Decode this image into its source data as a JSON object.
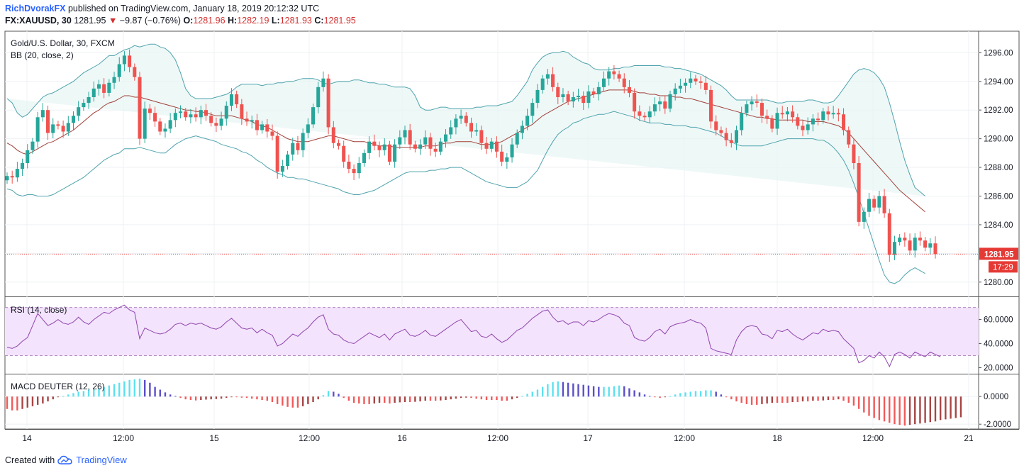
{
  "header": {
    "author": "RichDvorakFX",
    "published_text": "published on TradingView.com, January 18, 2019 20:12:32 UTC",
    "symbol_line": "FX:XAUUSD, 30",
    "last_price": "1281.95",
    "change_arrow": "▼",
    "change": "−9.87 (−0.76%)",
    "open_label": "O:",
    "open": "1281.96",
    "high_label": "H:",
    "high": "1282.19",
    "low_label": "L:",
    "low": "1281.93",
    "close_label": "C:",
    "close": "1281.95"
  },
  "footer": {
    "created_with": "Created with",
    "brand": "TradingView"
  },
  "colors": {
    "up": "#26a69a",
    "down": "#ef5350",
    "bb_band": "#4fa3ad",
    "bb_basis": "#a0403a",
    "rsi": "#8e44ad",
    "rsi_fill": "#f3e3fc",
    "macd_pos_strong": "#5ce1f0",
    "macd_pos_weak": "#5b4fc8",
    "macd_neg_strong": "#f05a5a",
    "macd_neg_weak": "#a84444",
    "price_label_bg": "#e53935"
  },
  "chart_data": [
    {
      "type": "candlestick",
      "title": "Gold/U.S. Dollar, 30, FXCM",
      "indicator": "BB (20, close, 2)",
      "x_labels": [
        "14",
        "12:00",
        "15",
        "12:00",
        "16",
        "12:00",
        "17",
        "12:00",
        "18",
        "12:00",
        "21"
      ],
      "y_ticks": [
        "1296.00",
        "1294.00",
        "1292.00",
        "1290.00",
        "1288.00",
        "1286.00",
        "1284.00",
        "1282.00",
        "1280.00"
      ],
      "ylim": [
        1279.0,
        1297.5
      ],
      "last_price_label": "1281.95",
      "countdown_label": "17:29",
      "closes": [
        1287.4,
        1287.3,
        1287.9,
        1288.3,
        1289.2,
        1289.8,
        1291.5,
        1292.0,
        1290.4,
        1291.0,
        1290.9,
        1290.5,
        1291.1,
        1291.6,
        1292.2,
        1292.5,
        1292.9,
        1293.5,
        1293.8,
        1293.2,
        1293.9,
        1294.3,
        1295.2,
        1295.8,
        1295.0,
        1294.3,
        1290.0,
        1292.1,
        1291.8,
        1291.2,
        1290.5,
        1290.7,
        1291.3,
        1291.8,
        1291.9,
        1291.5,
        1291.7,
        1291.5,
        1292.0,
        1291.6,
        1291.1,
        1290.9,
        1291.4,
        1292.3,
        1293.1,
        1292.4,
        1291.4,
        1291.2,
        1291.3,
        1290.6,
        1291.0,
        1290.5,
        1290.2,
        1287.7,
        1288.1,
        1288.9,
        1289.7,
        1289.2,
        1290.4,
        1291.0,
        1292.2,
        1293.6,
        1294.2,
        1290.8,
        1289.7,
        1289.5,
        1288.4,
        1287.9,
        1287.6,
        1288.3,
        1289.0,
        1289.8,
        1289.5,
        1289.2,
        1289.6,
        1288.4,
        1289.6,
        1290.1,
        1290.6,
        1289.6,
        1289.3,
        1289.6,
        1290.1,
        1289.3,
        1289.1,
        1289.8,
        1290.3,
        1290.8,
        1291.4,
        1291.6,
        1291.1,
        1290.5,
        1290.6,
        1289.7,
        1289.3,
        1289.8,
        1289.1,
        1288.4,
        1288.7,
        1289.6,
        1290.4,
        1290.9,
        1291.6,
        1292.5,
        1293.4,
        1294.2,
        1294.5,
        1293.6,
        1292.9,
        1293.1,
        1292.6,
        1292.9,
        1293.0,
        1292.5,
        1293.3,
        1293.1,
        1293.6,
        1294.2,
        1294.7,
        1294.5,
        1294.2,
        1293.6,
        1293.2,
        1291.9,
        1291.6,
        1291.5,
        1291.9,
        1292.4,
        1292.6,
        1292.1,
        1293.1,
        1293.5,
        1293.7,
        1293.9,
        1294.2,
        1294.0,
        1293.9,
        1293.4,
        1291.2,
        1290.6,
        1290.4,
        1289.9,
        1289.7,
        1290.6,
        1291.8,
        1292.4,
        1292.6,
        1292.5,
        1291.6,
        1291.4,
        1290.7,
        1291.8,
        1291.7,
        1291.9,
        1291.5,
        1290.9,
        1290.6,
        1291.0,
        1291.4,
        1291.3,
        1291.9,
        1291.7,
        1291.8,
        1291.7,
        1290.6,
        1289.6,
        1288.3,
        1284.2,
        1284.9,
        1285.8,
        1285.2,
        1286.0,
        1284.8,
        1281.9,
        1282.8,
        1283.1,
        1282.9,
        1282.2,
        1283.1,
        1282.9,
        1282.4,
        1282.7,
        1281.95
      ],
      "bb_upper": [
        1292.8,
        1292.5,
        1291.8,
        1291.5,
        1291.7,
        1292.1,
        1292.5,
        1292.9,
        1293.1,
        1293.2,
        1293.4,
        1293.6,
        1293.8,
        1294.0,
        1294.3,
        1294.6,
        1294.8,
        1295.0,
        1295.2,
        1295.5,
        1295.8,
        1295.8,
        1296.0,
        1296.2,
        1296.3,
        1296.5,
        1296.4,
        1296.5,
        1296.6,
        1296.6,
        1296.4,
        1296.3,
        1296.0,
        1295.5,
        1294.6,
        1293.5,
        1293.0,
        1292.8,
        1292.8,
        1292.8,
        1292.8,
        1292.9,
        1293.0,
        1293.1,
        1293.3,
        1293.6,
        1293.8,
        1293.8,
        1293.8,
        1293.8,
        1293.7,
        1293.8,
        1293.8,
        1293.9,
        1293.9,
        1294.0,
        1294.0,
        1294.1,
        1294.2,
        1294.2,
        1294.2,
        1294.1,
        1293.9,
        1293.8,
        1293.9,
        1294.0,
        1294.0,
        1294.0,
        1294.1,
        1294.1,
        1294.0,
        1293.9,
        1293.9,
        1293.8,
        1293.8,
        1293.7,
        1293.6,
        1293.6,
        1293.6,
        1293.5,
        1293.0,
        1292.2,
        1292.0,
        1292.0,
        1292.1,
        1292.2,
        1292.2,
        1292.1,
        1292.1,
        1292.1,
        1292.1,
        1292.1,
        1292.2,
        1292.2,
        1292.3,
        1292.3,
        1292.3,
        1292.4,
        1292.5,
        1292.6,
        1293.0,
        1293.5,
        1294.0,
        1294.8,
        1295.3,
        1295.7,
        1295.9,
        1296.0,
        1296.0,
        1296.1,
        1296.0,
        1295.7,
        1295.5,
        1295.3,
        1295.2,
        1294.9,
        1294.8,
        1294.8,
        1294.8,
        1294.9,
        1294.9,
        1295.0,
        1295.0,
        1295.1,
        1295.1,
        1295.1,
        1295.1,
        1295.1,
        1295.1,
        1295.0,
        1295.0,
        1294.9,
        1294.9,
        1294.8,
        1294.7,
        1294.6,
        1294.5,
        1294.3,
        1294.1,
        1293.9,
        1293.7,
        1293.4,
        1293.0,
        1292.7,
        1292.7,
        1292.7,
        1292.7,
        1292.7,
        1292.7,
        1292.7,
        1292.6,
        1292.5,
        1292.5,
        1292.6,
        1292.6,
        1292.6,
        1292.6,
        1292.7,
        1292.7,
        1292.6,
        1292.5,
        1292.5,
        1292.6,
        1293.0,
        1293.5,
        1294.0,
        1294.5,
        1294.8,
        1294.9,
        1294.8,
        1294.6,
        1294.2,
        1293.6,
        1292.5,
        1291.2,
        1289.8,
        1288.5,
        1287.5,
        1286.6,
        1286.3,
        1286.0
      ],
      "bb_basis": [
        1289.7,
        1289.5,
        1289.2,
        1289.0,
        1288.9,
        1289.1,
        1289.3,
        1289.5,
        1289.7,
        1289.8,
        1290.0,
        1290.2,
        1290.4,
        1290.6,
        1290.9,
        1291.2,
        1291.5,
        1291.8,
        1292.0,
        1292.3,
        1292.5,
        1292.6,
        1292.8,
        1293.0,
        1293.0,
        1292.9,
        1292.9,
        1292.8,
        1292.7,
        1292.6,
        1292.5,
        1292.4,
        1292.3,
        1292.2,
        1292.1,
        1292.0,
        1292.0,
        1291.9,
        1291.9,
        1291.8,
        1291.7,
        1291.6,
        1291.6,
        1291.6,
        1291.6,
        1291.5,
        1291.4,
        1291.3,
        1291.2,
        1291.0,
        1290.9,
        1290.8,
        1290.6,
        1290.4,
        1290.2,
        1290.0,
        1289.9,
        1289.8,
        1289.8,
        1289.8,
        1289.9,
        1290.0,
        1290.1,
        1290.2,
        1290.2,
        1290.1,
        1290.0,
        1289.9,
        1289.8,
        1289.8,
        1289.8,
        1289.7,
        1289.6,
        1289.5,
        1289.5,
        1289.5,
        1289.4,
        1289.4,
        1289.4,
        1289.4,
        1289.4,
        1289.4,
        1289.5,
        1289.5,
        1289.5,
        1289.6,
        1289.7,
        1289.7,
        1289.8,
        1289.8,
        1289.8,
        1289.8,
        1289.7,
        1289.6,
        1289.6,
        1289.6,
        1289.7,
        1289.8,
        1290.0,
        1290.2,
        1290.4,
        1290.6,
        1290.8,
        1291.0,
        1291.3,
        1291.6,
        1291.8,
        1292.0,
        1292.2,
        1292.4,
        1292.6,
        1292.7,
        1292.8,
        1292.9,
        1293.0,
        1293.1,
        1293.2,
        1293.3,
        1293.4,
        1293.4,
        1293.4,
        1293.4,
        1293.4,
        1293.3,
        1293.2,
        1293.2,
        1293.1,
        1293.1,
        1293.0,
        1293.0,
        1293.0,
        1292.9,
        1292.9,
        1292.8,
        1292.8,
        1292.7,
        1292.6,
        1292.5,
        1292.4,
        1292.3,
        1292.2,
        1292.1,
        1292.0,
        1291.9,
        1291.8,
        1291.7,
        1291.6,
        1291.5,
        1291.5,
        1291.4,
        1291.4,
        1291.3,
        1291.3,
        1291.3,
        1291.3,
        1291.3,
        1291.3,
        1291.2,
        1291.2,
        1291.2,
        1291.2,
        1291.1,
        1291.0,
        1290.9,
        1290.7,
        1290.4,
        1290.0,
        1289.6,
        1289.2,
        1288.8,
        1288.4,
        1288.0,
        1287.6,
        1287.2,
        1286.8,
        1286.4,
        1286.1,
        1285.8,
        1285.5,
        1285.2,
        1284.9
      ],
      "bb_lower": [
        1286.5,
        1286.4,
        1286.1,
        1286.0,
        1286.1,
        1286.1,
        1286.0,
        1286.0,
        1286.0,
        1286.1,
        1286.3,
        1286.5,
        1286.7,
        1286.9,
        1287.1,
        1287.3,
        1287.6,
        1287.9,
        1288.2,
        1288.5,
        1288.7,
        1288.9,
        1289.0,
        1289.3,
        1289.3,
        1289.3,
        1289.4,
        1289.3,
        1289.2,
        1289.1,
        1289.0,
        1289.0,
        1289.3,
        1289.6,
        1289.8,
        1290.0,
        1290.1,
        1290.2,
        1290.1,
        1290.0,
        1289.9,
        1289.8,
        1289.6,
        1289.5,
        1289.4,
        1289.3,
        1289.1,
        1289.0,
        1288.8,
        1288.5,
        1288.3,
        1288.0,
        1287.8,
        1287.6,
        1287.5,
        1287.3,
        1287.3,
        1287.2,
        1287.2,
        1287.1,
        1287.0,
        1286.9,
        1286.8,
        1286.7,
        1286.6,
        1286.5,
        1286.3,
        1286.2,
        1286.1,
        1286.1,
        1286.2,
        1286.3,
        1286.4,
        1286.6,
        1286.8,
        1287.0,
        1287.2,
        1287.4,
        1287.6,
        1287.7,
        1287.7,
        1287.7,
        1287.7,
        1287.8,
        1287.8,
        1287.9,
        1287.9,
        1288.0,
        1288.0,
        1288.0,
        1287.8,
        1287.6,
        1287.4,
        1287.2,
        1287.0,
        1286.9,
        1286.8,
        1286.7,
        1286.6,
        1286.6,
        1286.6,
        1286.8,
        1287.0,
        1287.4,
        1287.8,
        1288.5,
        1289.2,
        1289.8,
        1290.3,
        1290.6,
        1290.8,
        1291.1,
        1291.2,
        1291.4,
        1291.5,
        1291.6,
        1291.7,
        1291.7,
        1291.8,
        1291.9,
        1291.8,
        1291.7,
        1291.6,
        1291.5,
        1291.3,
        1291.2,
        1291.1,
        1291.1,
        1291.1,
        1291.0,
        1291.0,
        1290.9,
        1290.9,
        1290.9,
        1290.8,
        1290.8,
        1290.7,
        1290.6,
        1290.5,
        1290.4,
        1290.2,
        1290.0,
        1289.8,
        1289.6,
        1289.5,
        1289.5,
        1289.5,
        1289.5,
        1289.5,
        1289.6,
        1289.7,
        1289.8,
        1289.9,
        1290.0,
        1290.0,
        1290.0,
        1290.0,
        1290.0,
        1290.0,
        1289.9,
        1289.9,
        1289.7,
        1289.4,
        1289.0,
        1288.5,
        1287.8,
        1286.9,
        1285.9,
        1284.8,
        1283.7,
        1282.6,
        1281.5,
        1280.5,
        1280.0,
        1279.9,
        1280.1,
        1280.5,
        1280.8,
        1281.0,
        1280.8,
        1280.6
      ]
    },
    {
      "type": "line",
      "title": "RSI (14, close)",
      "y_ticks": [
        "60.0000",
        "40.0000",
        "20.0000"
      ],
      "ylim": [
        15,
        78
      ],
      "band": [
        30,
        70
      ],
      "values": [
        37,
        36,
        38,
        42,
        45,
        55,
        65,
        60,
        55,
        57,
        60,
        57,
        56,
        58,
        62,
        58,
        56,
        60,
        63,
        66,
        65,
        68,
        70,
        72,
        68,
        66,
        44,
        53,
        51,
        49,
        48,
        49,
        52,
        56,
        57,
        55,
        57,
        56,
        57,
        55,
        53,
        52,
        54,
        58,
        61,
        57,
        53,
        52,
        53,
        49,
        52,
        49,
        47,
        38,
        40,
        44,
        48,
        46,
        50,
        53,
        58,
        62,
        64,
        52,
        48,
        47,
        43,
        41,
        40,
        43,
        46,
        49,
        47,
        45,
        48,
        43,
        48,
        50,
        52,
        47,
        46,
        48,
        51,
        47,
        46,
        49,
        52,
        55,
        58,
        60,
        55,
        50,
        51,
        46,
        45,
        48,
        44,
        41,
        43,
        47,
        51,
        53,
        57,
        61,
        64,
        67,
        68,
        62,
        58,
        59,
        56,
        58,
        58,
        55,
        59,
        58,
        60,
        63,
        65,
        64,
        62,
        57,
        55,
        45,
        43,
        42,
        45,
        50,
        52,
        48,
        54,
        56,
        57,
        58,
        60,
        58,
        57,
        53,
        36,
        34,
        33,
        32,
        31,
        43,
        50,
        54,
        55,
        54,
        48,
        47,
        44,
        51,
        50,
        52,
        48,
        45,
        43,
        46,
        49,
        48,
        52,
        50,
        51,
        50,
        44,
        40,
        36,
        24,
        26,
        30,
        28,
        33,
        29,
        21,
        31,
        33,
        31,
        28,
        33,
        31,
        29,
        33,
        31,
        29
      ],
      "ylabel": ""
    },
    {
      "type": "bar",
      "title": "MACD DEUTER (12, 26)",
      "y_ticks": [
        "0.0000",
        "-2.0000"
      ],
      "ylim": [
        -2.35,
        1.55
      ],
      "values": [
        -0.9,
        -1.0,
        -1.0,
        -0.9,
        -0.8,
        -0.7,
        -0.6,
        -0.5,
        -0.35,
        -0.2,
        -0.05,
        0.05,
        0.15,
        0.25,
        0.35,
        0.4,
        0.5,
        0.55,
        0.6,
        0.7,
        0.8,
        0.9,
        1.0,
        1.1,
        1.2,
        1.25,
        1.3,
        1.2,
        1.0,
        0.7,
        0.5,
        0.3,
        0.15,
        0.05,
        -0.1,
        -0.2,
        -0.25,
        -0.28,
        -0.25,
        -0.22,
        -0.2,
        -0.18,
        -0.15,
        -0.1,
        -0.05,
        -0.05,
        -0.08,
        -0.1,
        -0.15,
        -0.2,
        -0.25,
        -0.3,
        -0.4,
        -0.55,
        -0.65,
        -0.75,
        -0.8,
        -0.8,
        -0.7,
        -0.55,
        -0.4,
        -0.2,
        0.1,
        0.4,
        0.35,
        0.2,
        -0.1,
        -0.3,
        -0.45,
        -0.5,
        -0.55,
        -0.55,
        -0.5,
        -0.45,
        -0.45,
        -0.5,
        -0.45,
        -0.42,
        -0.4,
        -0.4,
        -0.38,
        -0.35,
        -0.3,
        -0.3,
        -0.3,
        -0.28,
        -0.25,
        -0.2,
        -0.15,
        -0.1,
        -0.08,
        -0.1,
        -0.15,
        -0.2,
        -0.25,
        -0.25,
        -0.25,
        -0.3,
        -0.3,
        -0.2,
        -0.1,
        0.05,
        0.2,
        0.35,
        0.5,
        0.7,
        0.9,
        1.05,
        1.1,
        1.05,
        1.0,
        0.95,
        0.9,
        0.85,
        0.8,
        0.75,
        0.7,
        0.7,
        0.7,
        0.75,
        0.8,
        0.75,
        0.6,
        0.45,
        0.3,
        0.15,
        0.05,
        -0.05,
        -0.1,
        -0.05,
        0.05,
        0.15,
        0.25,
        0.3,
        0.35,
        0.4,
        0.4,
        0.45,
        0.45,
        0.35,
        0.15,
        -0.05,
        -0.2,
        -0.35,
        -0.45,
        -0.55,
        -0.6,
        -0.6,
        -0.55,
        -0.5,
        -0.45,
        -0.45,
        -0.45,
        -0.45,
        -0.4,
        -0.4,
        -0.35,
        -0.35,
        -0.3,
        -0.3,
        -0.28,
        -0.25,
        -0.25,
        -0.2,
        -0.3,
        -0.45,
        -0.65,
        -0.9,
        -1.15,
        -1.4,
        -1.55,
        -1.7,
        -1.8,
        -1.9,
        -2.0,
        -2.05,
        -2.1,
        -2.05,
        -2.0,
        -1.95,
        -1.9,
        -1.85,
        -1.8,
        -1.7,
        -1.65,
        -1.6,
        -1.55,
        -1.5
      ],
      "ylabel": ""
    }
  ]
}
